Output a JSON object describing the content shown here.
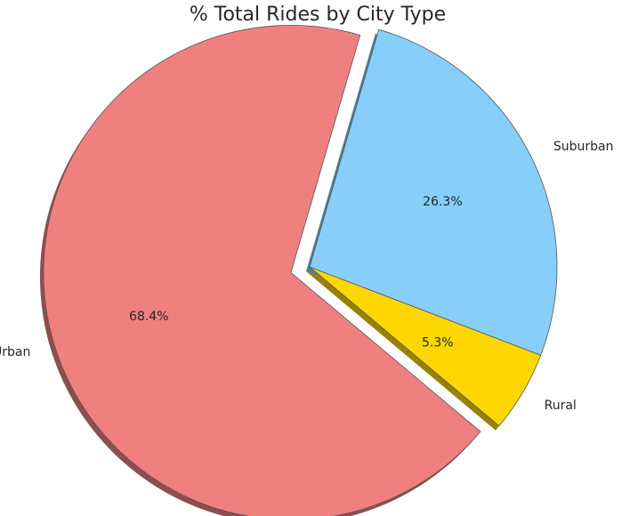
{
  "chart_data": {
    "type": "pie",
    "title": "% Total Rides by City Type",
    "slices": [
      {
        "label": "Rural",
        "value": 5.3,
        "display": "5.3%",
        "color": "#ffd700",
        "exploded": false
      },
      {
        "label": "Suburban",
        "value": 26.3,
        "display": "26.3%",
        "color": "#87cefa",
        "exploded": false
      },
      {
        "label": "Urban",
        "value": 68.4,
        "display": "68.4%",
        "color": "#f08080",
        "exploded": true
      }
    ],
    "start_angle": -40,
    "shadow": true,
    "edge_color": "#555555"
  }
}
